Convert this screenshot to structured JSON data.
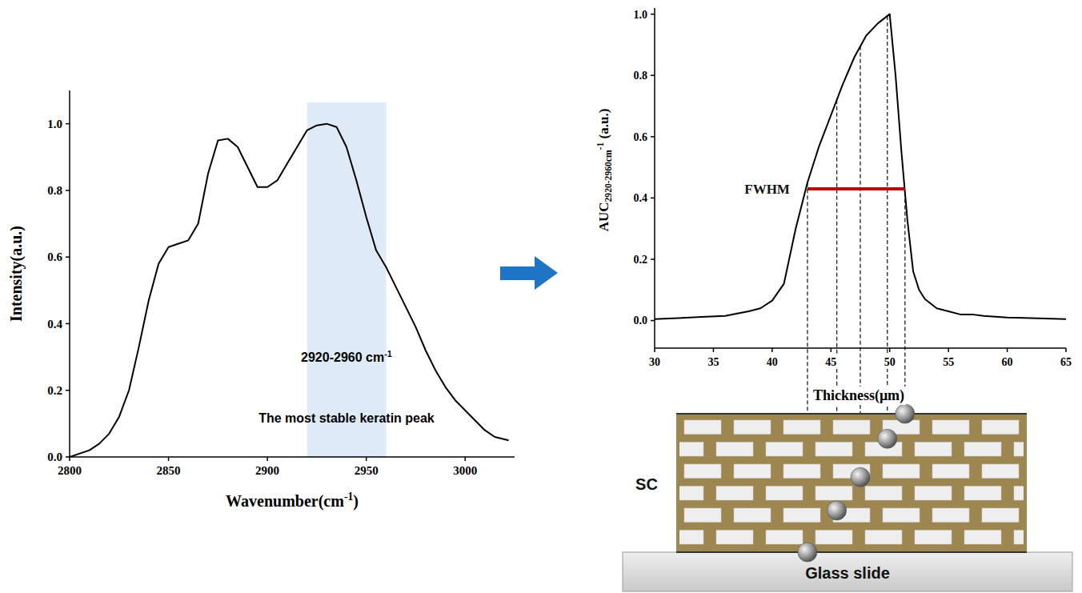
{
  "chart_data": [
    {
      "type": "line",
      "x_label": [
        {
          "text": "Wavenumber(cm"
        },
        {
          "text": "-1",
          "sup": true
        },
        {
          "text": ")"
        }
      ],
      "y_label": [
        {
          "text": "Intensity(a.u.)"
        }
      ],
      "x": [
        2800,
        2810,
        2815,
        2820,
        2825,
        2830,
        2835,
        2840,
        2845,
        2850,
        2855,
        2860,
        2865,
        2870,
        2875,
        2880,
        2885,
        2890,
        2895,
        2900,
        2905,
        2910,
        2915,
        2920,
        2925,
        2930,
        2935,
        2940,
        2945,
        2950,
        2955,
        2960,
        2965,
        2970,
        2975,
        2980,
        2985,
        2990,
        2995,
        3000,
        3005,
        3010,
        3015,
        3022
      ],
      "values": [
        0.0,
        0.02,
        0.04,
        0.07,
        0.12,
        0.2,
        0.33,
        0.47,
        0.58,
        0.63,
        0.64,
        0.65,
        0.7,
        0.85,
        0.95,
        0.955,
        0.93,
        0.87,
        0.81,
        0.81,
        0.83,
        0.88,
        0.93,
        0.98,
        0.995,
        1.0,
        0.99,
        0.93,
        0.83,
        0.72,
        0.62,
        0.57,
        0.51,
        0.45,
        0.39,
        0.32,
        0.26,
        0.21,
        0.17,
        0.14,
        0.11,
        0.08,
        0.06,
        0.05
      ],
      "color": "#000000",
      "xlim": [
        2800,
        3025
      ],
      "ylim": [
        0,
        1.1
      ],
      "xticks": [
        2800,
        2850,
        2900,
        2950,
        3000
      ],
      "yticks": [
        {
          "value": 0,
          "label": "0.0"
        },
        {
          "value": 0.2,
          "label": "0.2"
        },
        {
          "value": 0.4,
          "label": "0.4"
        },
        {
          "value": 0.6,
          "label": "0.6"
        },
        {
          "value": 0.8,
          "label": "0.8"
        },
        {
          "value": 1.0,
          "label": "1.0"
        }
      ],
      "band": {
        "x": [
          2920,
          2960
        ],
        "color": "#deebf7",
        "label": [
          {
            "text": "2920-2960 cm"
          },
          {
            "text": "-1",
            "sup": true
          }
        ],
        "note": "The most stable keratin peak"
      }
    },
    {
      "type": "line",
      "x_label": [
        {
          "text": "Thickness(μm)"
        }
      ],
      "y_label": [
        {
          "text": "AUC"
        },
        {
          "text": "2920-2960cm",
          "sub": true
        },
        {
          "text": "-1",
          "sup": true
        },
        {
          "text": " (a.u.)"
        }
      ],
      "x": [
        30,
        32,
        34,
        36,
        38,
        39,
        40,
        41,
        42,
        43,
        44,
        45,
        46,
        47,
        48,
        49,
        50,
        50.5,
        51,
        51.5,
        52,
        52.5,
        53,
        54,
        55,
        56,
        57,
        58,
        60,
        62,
        65
      ],
      "values": [
        0.005,
        0.008,
        0.012,
        0.015,
        0.03,
        0.04,
        0.065,
        0.12,
        0.3,
        0.45,
        0.57,
        0.67,
        0.77,
        0.86,
        0.93,
        0.97,
        1.0,
        0.8,
        0.55,
        0.33,
        0.16,
        0.1,
        0.07,
        0.04,
        0.03,
        0.02,
        0.02,
        0.015,
        0.01,
        0.008,
        0.005
      ],
      "color": "#000000",
      "xlim": [
        30,
        65
      ],
      "ylim": [
        -0.09,
        1.02
      ],
      "xticks": [
        30,
        35,
        40,
        45,
        50,
        55,
        60,
        65
      ],
      "yticks": [
        {
          "value": 0,
          "label": "0.0"
        },
        {
          "value": 0.2,
          "label": "0.2"
        },
        {
          "value": 0.4,
          "label": "0.4"
        },
        {
          "value": 0.6,
          "label": "0.6"
        },
        {
          "value": 0.8,
          "label": "0.8"
        },
        {
          "value": 1.0,
          "label": "1.0"
        }
      ],
      "annotations": [
        {
          "text": "FWHM",
          "y": 0.43,
          "x": [
            43,
            51.3
          ],
          "color": "#c00000"
        }
      ],
      "guides": [
        43,
        45.5,
        47.5,
        49.8,
        51.3
      ]
    }
  ],
  "diagram": {
    "layer": "SC",
    "substrate": "Glass slide"
  }
}
